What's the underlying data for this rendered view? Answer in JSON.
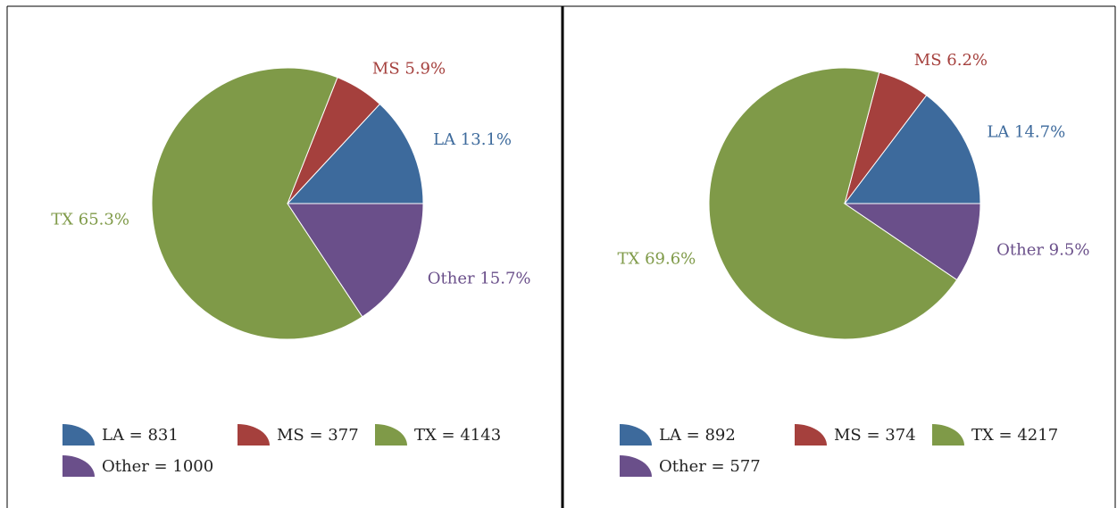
{
  "chart_data": [
    {
      "type": "pie",
      "values": [
        13.1,
        5.9,
        65.3,
        15.7
      ],
      "value_labels": [
        "LA 13.1%",
        "MS 5.9%",
        "TX 65.3%",
        "Other 15.7%"
      ],
      "legend": [
        "LA = 831",
        "MS = 377",
        "TX = 4143",
        "Other = 1000"
      ],
      "colors": [
        "#3d6a9c",
        "#a5403d",
        "#7f9a48",
        "#6a4f8a"
      ]
    },
    {
      "type": "pie",
      "values": [
        14.7,
        6.2,
        69.6,
        9.5
      ],
      "value_labels": [
        "LA 14.7%",
        "MS 6.2%",
        "TX 69.6%",
        "Other 9.5%"
      ],
      "legend": [
        "LA = 892",
        "MS = 374",
        "TX = 4217",
        "Other = 577"
      ],
      "colors": [
        "#3d6a9c",
        "#a5403d",
        "#7f9a48",
        "#6a4f8a"
      ]
    }
  ]
}
